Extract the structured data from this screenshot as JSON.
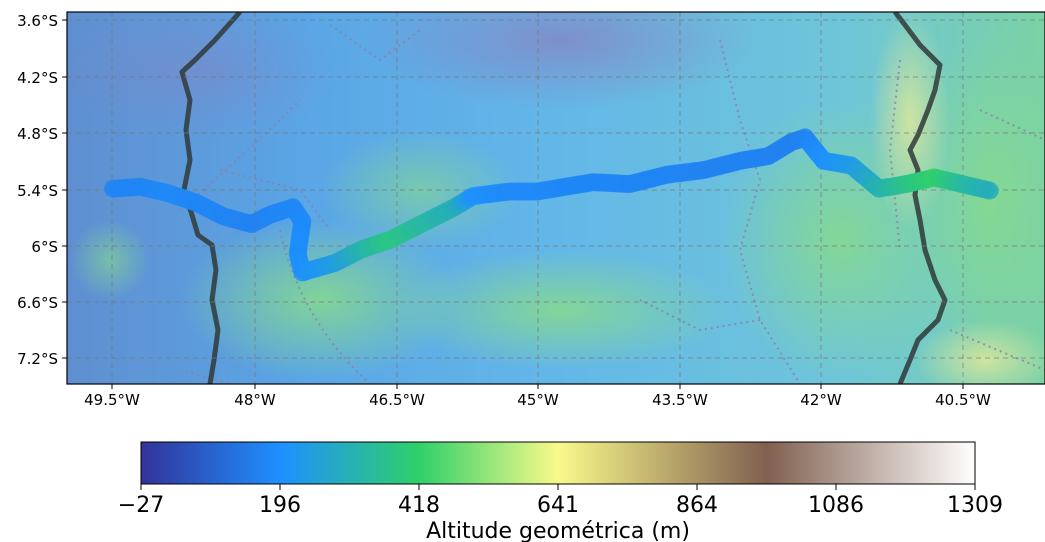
{
  "map": {
    "longitude_ticks": [
      "49.5°W",
      "48°W",
      "46.5°W",
      "45°W",
      "43.5°W",
      "42°W",
      "40.5°W"
    ],
    "latitude_ticks": [
      "3.6°S",
      "4.2°S",
      "4.8°S",
      "5.4°S",
      "6°S",
      "6.6°S",
      "7.2°S"
    ],
    "track_colormap": "terrain",
    "gridlines": "dashed gray"
  },
  "colorbar": {
    "label": "Altitude geométrica (m)",
    "ticks": [
      "−27",
      "196",
      "418",
      "641",
      "864",
      "1086",
      "1309"
    ],
    "range": [
      -27,
      1309
    ],
    "colors": [
      "#333399",
      "#1e90ff",
      "#2fd06a",
      "#f9f98a",
      "#806050",
      "#ffffff"
    ]
  },
  "chart_data": {
    "type": "scatter",
    "title": "",
    "xlabel": "",
    "ylabel": "",
    "xlim": [
      -50.0,
      -39.4
    ],
    "ylim": [
      -7.5,
      -3.5
    ],
    "colorbar_label": "Altitude geométrica (m)",
    "color_range": [
      -27,
      1309
    ],
    "series": [
      {
        "points": [
          {
            "lon": -49.5,
            "lat": -5.4,
            "alt": 170
          },
          {
            "lon": -49.2,
            "lat": -5.38,
            "alt": 170
          },
          {
            "lon": -48.9,
            "lat": -5.45,
            "alt": 180
          },
          {
            "lon": -48.6,
            "lat": -5.55,
            "alt": 175
          },
          {
            "lon": -48.3,
            "lat": -5.7,
            "alt": 170
          },
          {
            "lon": -48.0,
            "lat": -5.78,
            "alt": 165
          },
          {
            "lon": -47.8,
            "lat": -5.68,
            "alt": 170
          },
          {
            "lon": -47.55,
            "lat": -5.6,
            "alt": 175
          },
          {
            "lon": -47.45,
            "lat": -5.75,
            "alt": 180
          },
          {
            "lon": -47.5,
            "lat": -6.1,
            "alt": 190
          },
          {
            "lon": -47.45,
            "lat": -6.3,
            "alt": 200
          },
          {
            "lon": -47.1,
            "lat": -6.2,
            "alt": 240
          },
          {
            "lon": -46.8,
            "lat": -6.05,
            "alt": 320
          },
          {
            "lon": -46.5,
            "lat": -5.95,
            "alt": 380
          },
          {
            "lon": -46.1,
            "lat": -5.75,
            "alt": 330
          },
          {
            "lon": -45.8,
            "lat": -5.6,
            "alt": 300
          },
          {
            "lon": -45.6,
            "lat": -5.48,
            "alt": 200
          },
          {
            "lon": -45.2,
            "lat": -5.43,
            "alt": 180
          },
          {
            "lon": -44.9,
            "lat": -5.43,
            "alt": 180
          },
          {
            "lon": -44.6,
            "lat": -5.38,
            "alt": 175
          },
          {
            "lon": -44.3,
            "lat": -5.33,
            "alt": 175
          },
          {
            "lon": -43.9,
            "lat": -5.35,
            "alt": 170
          },
          {
            "lon": -43.5,
            "lat": -5.25,
            "alt": 170
          },
          {
            "lon": -43.1,
            "lat": -5.2,
            "alt": 165
          },
          {
            "lon": -42.7,
            "lat": -5.1,
            "alt": 165
          },
          {
            "lon": -42.4,
            "lat": -5.05,
            "alt": 165
          },
          {
            "lon": -42.15,
            "lat": -4.9,
            "alt": 160
          },
          {
            "lon": -42.0,
            "lat": -4.85,
            "alt": 165
          },
          {
            "lon": -41.8,
            "lat": -5.1,
            "alt": 200
          },
          {
            "lon": -41.5,
            "lat": -5.15,
            "alt": 230
          },
          {
            "lon": -41.2,
            "lat": -5.4,
            "alt": 310
          },
          {
            "lon": -40.9,
            "lat": -5.35,
            "alt": 370
          },
          {
            "lon": -40.6,
            "lat": -5.28,
            "alt": 420
          },
          {
            "lon": -40.3,
            "lat": -5.35,
            "alt": 340
          },
          {
            "lon": -40.0,
            "lat": -5.42,
            "alt": 300
          }
        ]
      }
    ]
  }
}
